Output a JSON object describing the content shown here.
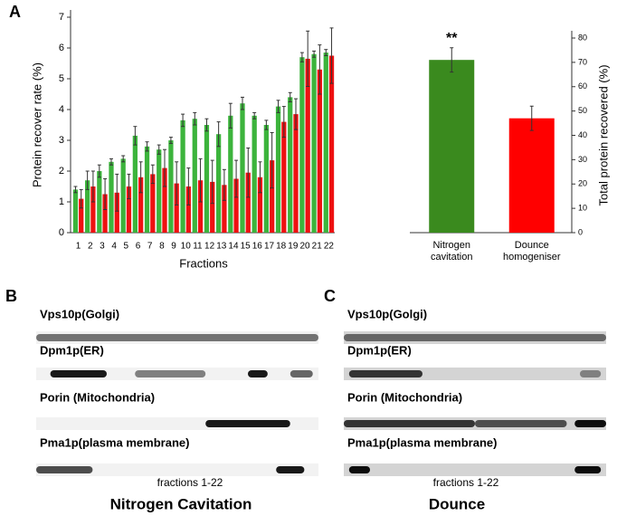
{
  "panels": [
    "A",
    "B",
    "C"
  ],
  "chart_data": [
    {
      "type": "bar",
      "ylabel": "Protein recover rate (%)",
      "xlabel": "Fractions",
      "categories": [
        "1",
        "2",
        "3",
        "4",
        "5",
        "6",
        "7",
        "8",
        "9",
        "10",
        "11",
        "12",
        "13",
        "14",
        "15",
        "16",
        "17",
        "18",
        "19",
        "20",
        "21",
        "22"
      ],
      "ylim": [
        0,
        7
      ],
      "yticks": [
        0,
        1,
        2,
        3,
        4,
        5,
        6,
        7
      ],
      "series": [
        {
          "color": "#3cb43c",
          "values": [
            1.4,
            1.7,
            2.0,
            2.3,
            2.4,
            3.15,
            2.8,
            2.7,
            3.0,
            3.65,
            3.7,
            3.5,
            3.2,
            3.8,
            4.2,
            3.8,
            3.5,
            4.1,
            4.4,
            5.7,
            5.8,
            5.85
          ],
          "errors": [
            0.1,
            0.3,
            0.2,
            0.1,
            0.1,
            0.3,
            0.15,
            0.15,
            0.1,
            0.2,
            0.2,
            0.2,
            0.4,
            0.4,
            0.2,
            0.1,
            0.15,
            0.2,
            0.15,
            0.15,
            0.1,
            0.1
          ]
        },
        {
          "color": "#ee1111",
          "values": [
            1.1,
            1.5,
            1.25,
            1.3,
            1.5,
            1.8,
            1.9,
            2.1,
            1.6,
            1.5,
            1.7,
            1.65,
            1.55,
            1.75,
            1.95,
            1.8,
            2.35,
            3.6,
            3.85,
            5.65,
            5.3,
            5.75
          ],
          "errors": [
            0.3,
            0.5,
            0.5,
            0.6,
            0.4,
            0.5,
            0.3,
            0.6,
            0.7,
            0.6,
            0.7,
            0.7,
            0.5,
            0.6,
            0.8,
            0.5,
            0.9,
            0.5,
            0.5,
            0.9,
            0.8,
            0.9
          ]
        }
      ]
    },
    {
      "type": "bar",
      "ylabel": "Total protein recovered (%)",
      "yaxis_side": "right",
      "categories": [
        "Nitrogen cavitation",
        "Dounce homogeniser"
      ],
      "values": [
        71,
        47
      ],
      "errors": [
        5,
        5
      ],
      "colors": [
        "#3a8a1e",
        "#ff0000"
      ],
      "ylim": [
        0,
        80
      ],
      "yticks": [
        0,
        10,
        20,
        30,
        40,
        50,
        60,
        70,
        80
      ],
      "annotations": [
        {
          "text": "**",
          "category": 0
        }
      ]
    }
  ],
  "blots": [
    {
      "rows": [
        "Vps10p(Golgi)",
        "Dpm1p(ER)",
        "Porin (Mitochondria)",
        "Pma1p(plasma membrane)"
      ],
      "caption": "fractions 1-22",
      "title": "Nitrogen Cavitation"
    },
    {
      "rows": [
        "Vps10p(Golgi)",
        "Dpm1p(ER)",
        "Porin (Mitochondria)",
        "Pma1p(plasma membrane)"
      ],
      "caption": "fractions 1-22",
      "title": "Dounce"
    }
  ]
}
